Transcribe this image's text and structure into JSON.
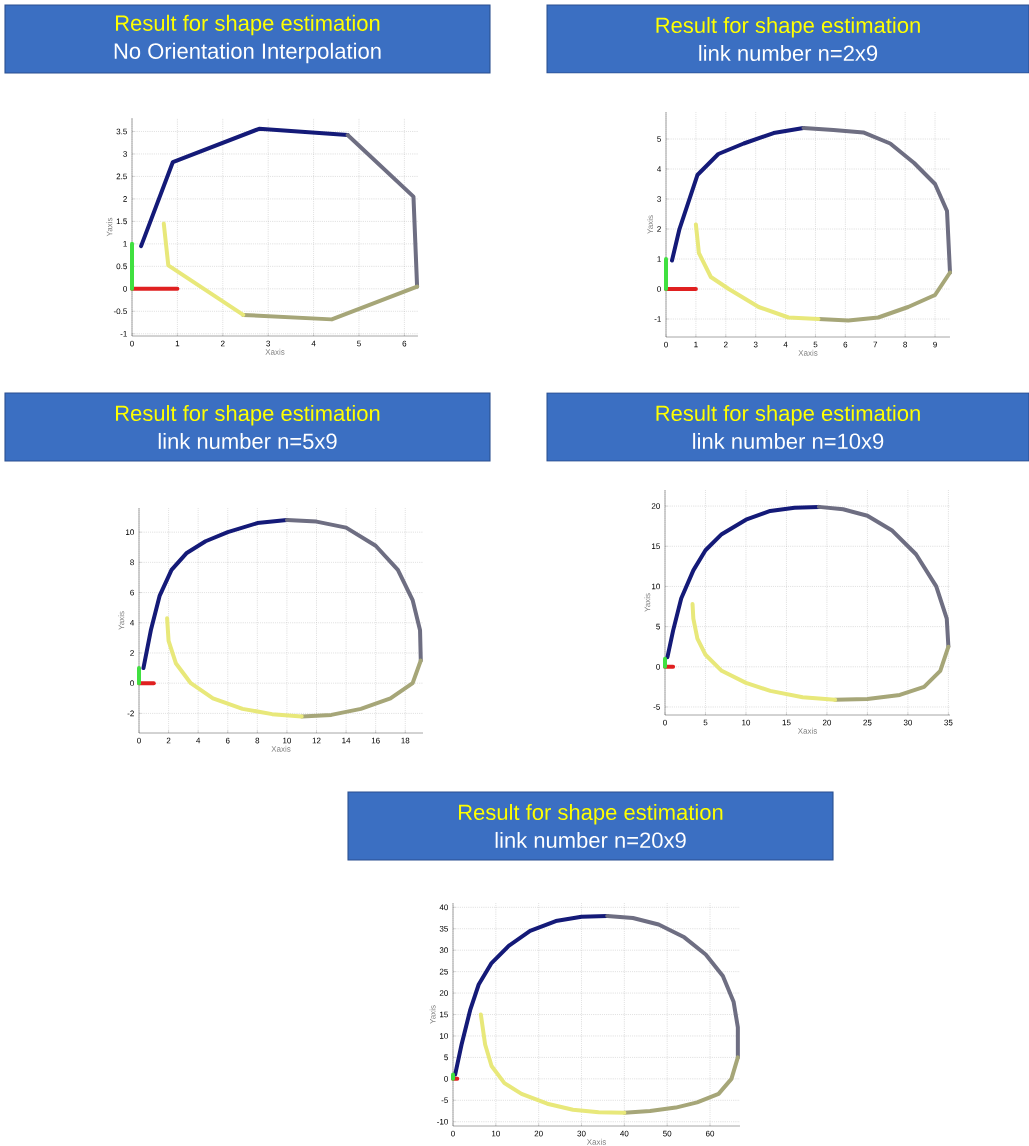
{
  "chart_data": [
    {
      "type": "line",
      "title": "Result for shape estimation",
      "subtitle": "No Orientation Interpolation",
      "xlabel": "Xaxis",
      "ylabel": "Yaxis",
      "xlim": [
        0,
        6.3
      ],
      "ylim": [
        -1.05,
        3.8
      ],
      "xticks": [
        0,
        1,
        2,
        3,
        4,
        5,
        6
      ],
      "yticks": [
        -1,
        -0.5,
        0,
        0.5,
        1,
        1.5,
        2,
        2.5,
        3,
        3.5
      ],
      "grid": true,
      "series": [
        {
          "color": "#141a78",
          "x": [
            0.2,
            0.9,
            2.8,
            4.75
          ],
          "values": [
            0.95,
            2.82,
            3.56,
            3.42
          ]
        },
        {
          "color": "#6e6e82",
          "x": [
            4.75,
            6.2,
            6.28
          ],
          "values": [
            3.42,
            2.05,
            0.05
          ]
        },
        {
          "color": "#a6a678",
          "x": [
            6.28,
            4.4,
            2.45
          ],
          "values": [
            0.05,
            -0.68,
            -0.58
          ]
        },
        {
          "color": "#e8e87a",
          "x": [
            2.45,
            0.8,
            0.7
          ],
          "values": [
            -0.58,
            0.52,
            1.45
          ]
        },
        {
          "color": "#e02020",
          "x": [
            0,
            1
          ],
          "values": [
            0,
            0
          ]
        },
        {
          "color": "#40e040",
          "x": [
            0,
            0
          ],
          "values": [
            0,
            1
          ]
        }
      ]
    },
    {
      "type": "line",
      "title": "Result for shape estimation",
      "subtitle": "link number n=2x9",
      "xlabel": "Xaxis",
      "ylabel": "Yaxis",
      "xlim": [
        0,
        9.5
      ],
      "ylim": [
        -1.6,
        5.9
      ],
      "xticks": [
        0,
        1,
        2,
        3,
        4,
        5,
        6,
        7,
        8,
        9
      ],
      "yticks": [
        -1,
        0,
        1,
        2,
        3,
        4,
        5
      ],
      "grid": true,
      "series": [
        {
          "color": "#141a78",
          "x": [
            0.2,
            0.45,
            1.05,
            1.75,
            2.6,
            3.6,
            4.6
          ],
          "values": [
            0.95,
            2.0,
            3.8,
            4.5,
            4.85,
            5.2,
            5.37
          ]
        },
        {
          "color": "#6e6e82",
          "x": [
            4.6,
            5.6,
            6.6,
            7.5,
            8.3,
            9.0,
            9.4,
            9.5
          ],
          "values": [
            5.37,
            5.3,
            5.22,
            4.85,
            4.2,
            3.5,
            2.6,
            0.55
          ]
        },
        {
          "color": "#a6a678",
          "x": [
            9.5,
            9.0,
            8.1,
            7.1,
            6.1,
            5.1
          ],
          "values": [
            0.55,
            -0.2,
            -0.6,
            -0.95,
            -1.05,
            -1.0
          ]
        },
        {
          "color": "#e8e87a",
          "x": [
            5.1,
            4.1,
            3.1,
            2.1,
            1.5,
            1.1,
            1.0
          ],
          "values": [
            -1.0,
            -0.95,
            -0.6,
            0,
            0.4,
            1.2,
            2.15
          ]
        },
        {
          "color": "#e02020",
          "x": [
            0,
            1
          ],
          "values": [
            0,
            0
          ]
        },
        {
          "color": "#40e040",
          "x": [
            0,
            0
          ],
          "values": [
            0,
            1
          ]
        }
      ]
    },
    {
      "type": "line",
      "title": "Result for shape estimation",
      "subtitle": "link number n=5x9",
      "xlabel": "Xaxis",
      "ylabel": "Yaxis",
      "xlim": [
        0,
        19.2
      ],
      "ylim": [
        -3.3,
        11.6
      ],
      "xticks": [
        0,
        2,
        4,
        6,
        8,
        10,
        12,
        14,
        16,
        18
      ],
      "yticks": [
        -2,
        0,
        2,
        4,
        6,
        8,
        10
      ],
      "grid": true,
      "series": [
        {
          "color": "#141a78",
          "x": [
            0.3,
            0.8,
            1.4,
            2.2,
            3.2,
            4.5,
            6,
            8,
            10
          ],
          "values": [
            1.0,
            3.5,
            5.8,
            7.5,
            8.6,
            9.4,
            10.0,
            10.6,
            10.8
          ]
        },
        {
          "color": "#6e6e82",
          "x": [
            10,
            12,
            14,
            16,
            17.5,
            18.5,
            19,
            19.05
          ],
          "values": [
            10.8,
            10.7,
            10.3,
            9.1,
            7.5,
            5.5,
            3.5,
            1.5
          ]
        },
        {
          "color": "#a6a678",
          "x": [
            19.05,
            18.5,
            17,
            15,
            13,
            11
          ],
          "values": [
            1.5,
            0,
            -1.0,
            -1.7,
            -2.1,
            -2.2
          ]
        },
        {
          "color": "#e8e87a",
          "x": [
            11,
            9,
            7,
            5,
            3.5,
            2.5,
            2,
            1.9
          ],
          "values": [
            -2.2,
            -2.05,
            -1.7,
            -1.0,
            0,
            1.3,
            2.8,
            4.3
          ]
        },
        {
          "color": "#e02020",
          "x": [
            0,
            1
          ],
          "values": [
            0,
            0
          ]
        },
        {
          "color": "#40e040",
          "x": [
            0,
            0
          ],
          "values": [
            0,
            1
          ]
        }
      ]
    },
    {
      "type": "line",
      "title": "Result for shape estimation",
      "subtitle": "link number n=10x9",
      "xlabel": "Xaxis",
      "ylabel": "Yaxis",
      "xlim": [
        0,
        35.2
      ],
      "ylim": [
        -6,
        22
      ],
      "xticks": [
        0,
        5,
        10,
        15,
        20,
        25,
        30,
        35
      ],
      "yticks": [
        -5,
        0,
        5,
        10,
        15,
        20
      ],
      "grid": true,
      "series": [
        {
          "color": "#141a78",
          "x": [
            0.3,
            1,
            2,
            3.5,
            5,
            7,
            10,
            13,
            16,
            19
          ],
          "values": [
            1.2,
            4.5,
            8.5,
            12,
            14.5,
            16.5,
            18.3,
            19.4,
            19.8,
            19.9
          ]
        },
        {
          "color": "#6e6e82",
          "x": [
            19,
            22,
            25,
            28,
            31,
            33.5,
            34.8,
            35
          ],
          "values": [
            19.9,
            19.6,
            18.8,
            17.0,
            14,
            10,
            6,
            2.5
          ]
        },
        {
          "color": "#a6a678",
          "x": [
            35,
            34,
            32,
            29,
            25,
            21
          ],
          "values": [
            2.5,
            -0.5,
            -2.5,
            -3.5,
            -4,
            -4.1
          ]
        },
        {
          "color": "#e8e87a",
          "x": [
            21,
            17,
            13,
            10,
            7,
            5,
            4,
            3.5,
            3.4
          ],
          "values": [
            -4.1,
            -3.8,
            -3,
            -2,
            -0.5,
            1.5,
            3.5,
            6,
            7.8
          ]
        },
        {
          "color": "#e02020",
          "x": [
            0,
            1
          ],
          "values": [
            0,
            0
          ]
        },
        {
          "color": "#40e040",
          "x": [
            0,
            0
          ],
          "values": [
            0,
            1
          ]
        }
      ]
    },
    {
      "type": "line",
      "title": "Result for shape estimation",
      "subtitle": "link number n=20x9",
      "xlabel": "Xaxis",
      "ylabel": "Yaxis",
      "xlim": [
        0,
        67
      ],
      "ylim": [
        -11,
        41
      ],
      "xticks": [
        0,
        10,
        20,
        30,
        40,
        50,
        60
      ],
      "yticks": [
        -10,
        -5,
        0,
        5,
        10,
        15,
        20,
        25,
        30,
        35,
        40
      ],
      "grid": true,
      "series": [
        {
          "color": "#141a78",
          "x": [
            0.5,
            2,
            4,
            6,
            9,
            13,
            18,
            24,
            30,
            36
          ],
          "values": [
            1,
            8,
            16,
            22,
            27,
            31,
            34.5,
            36.8,
            37.8,
            38
          ]
        },
        {
          "color": "#6e6e82",
          "x": [
            36,
            42,
            48,
            54,
            59,
            63,
            65.5,
            66.5,
            66.5
          ],
          "values": [
            38,
            37.5,
            36,
            33,
            29,
            24,
            18,
            12,
            5
          ]
        },
        {
          "color": "#a6a678",
          "x": [
            66.5,
            65,
            62,
            57,
            52,
            46,
            40
          ],
          "values": [
            5,
            0,
            -3.5,
            -5.5,
            -6.7,
            -7.5,
            -7.9
          ]
        },
        {
          "color": "#e8e87a",
          "x": [
            40,
            34,
            28,
            22,
            16,
            12,
            9,
            7.5,
            6.5
          ],
          "values": [
            -7.9,
            -7.8,
            -7.2,
            -5.8,
            -3.5,
            -1,
            3,
            8,
            15
          ]
        },
        {
          "color": "#e02020",
          "x": [
            0,
            1
          ],
          "values": [
            0,
            0
          ]
        },
        {
          "color": "#40e040",
          "x": [
            0,
            0
          ],
          "values": [
            0,
            1
          ]
        }
      ]
    }
  ]
}
